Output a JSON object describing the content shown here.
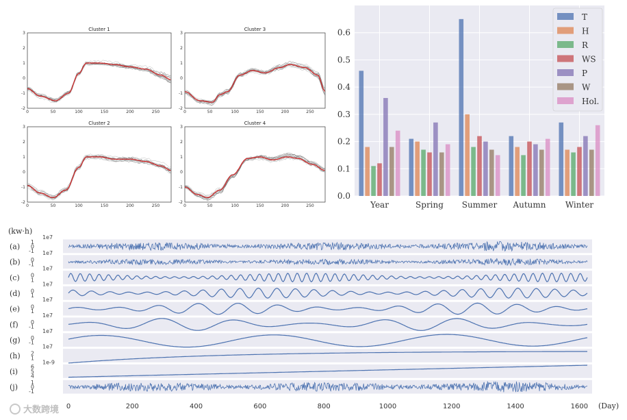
{
  "chart_data": [
    {
      "type": "line",
      "panel": "clusters",
      "xlim": [
        0,
        280
      ],
      "ylim": [
        -2,
        3
      ],
      "xticks": [
        0,
        50,
        100,
        150,
        200,
        250
      ],
      "yticks": [
        -2,
        -1,
        0,
        1,
        2,
        3
      ],
      "charts": [
        {
          "title": "Cluster 1",
          "mean": [
            [
              0,
              -0.7
            ],
            [
              25,
              -1.2
            ],
            [
              55,
              -1.5
            ],
            [
              80,
              -1.0
            ],
            [
              100,
              0.3
            ],
            [
              115,
              1.0
            ],
            [
              140,
              1.0
            ],
            [
              170,
              0.9
            ],
            [
              200,
              0.75
            ],
            [
              230,
              0.6
            ],
            [
              260,
              0.2
            ],
            [
              280,
              -0.1
            ]
          ]
        },
        {
          "title": "Cluster 3",
          "mean": [
            [
              0,
              -0.9
            ],
            [
              30,
              -1.5
            ],
            [
              55,
              -1.6
            ],
            [
              70,
              -1.1
            ],
            [
              85,
              -0.9
            ],
            [
              110,
              0.2
            ],
            [
              135,
              0.5
            ],
            [
              160,
              0.35
            ],
            [
              190,
              0.7
            ],
            [
              210,
              0.9
            ],
            [
              240,
              0.7
            ],
            [
              265,
              0.2
            ],
            [
              280,
              -0.9
            ]
          ]
        },
        {
          "title": "Cluster 2",
          "mean": [
            [
              0,
              -0.9
            ],
            [
              25,
              -1.4
            ],
            [
              50,
              -1.7
            ],
            [
              75,
              -1.2
            ],
            [
              100,
              0.3
            ],
            [
              115,
              1.0
            ],
            [
              140,
              1.0
            ],
            [
              170,
              0.85
            ],
            [
              200,
              0.85
            ],
            [
              230,
              0.7
            ],
            [
              260,
              0.4
            ],
            [
              280,
              0.1
            ]
          ]
        },
        {
          "title": "Cluster 4",
          "mean": [
            [
              0,
              -1.0
            ],
            [
              25,
              -1.5
            ],
            [
              45,
              -1.7
            ],
            [
              70,
              -1.2
            ],
            [
              95,
              -0.2
            ],
            [
              125,
              0.9
            ],
            [
              150,
              1.0
            ],
            [
              175,
              0.8
            ],
            [
              205,
              1.0
            ],
            [
              225,
              0.9
            ],
            [
              255,
              0.5
            ],
            [
              280,
              0.1
            ]
          ]
        }
      ]
    },
    {
      "type": "bar",
      "categories": [
        "Year",
        "Spring",
        "Summer",
        "Autumn",
        "Winter"
      ],
      "ylim": [
        0,
        0.7
      ],
      "yticks": [
        "0.0",
        "0.1",
        "0.2",
        "0.3",
        "0.4",
        "0.5",
        "0.6"
      ],
      "series": [
        {
          "name": "T",
          "color": "#4c72b0",
          "values": [
            0.46,
            0.21,
            0.65,
            0.22,
            0.27
          ]
        },
        {
          "name": "H",
          "color": "#dd8452",
          "values": [
            0.18,
            0.2,
            0.3,
            0.18,
            0.17
          ]
        },
        {
          "name": "R",
          "color": "#55a868",
          "values": [
            0.11,
            0.17,
            0.18,
            0.15,
            0.16
          ]
        },
        {
          "name": "WS",
          "color": "#c44e52",
          "values": [
            0.12,
            0.16,
            0.22,
            0.2,
            0.18
          ]
        },
        {
          "name": "P",
          "color": "#8172b3",
          "values": [
            0.36,
            0.27,
            0.2,
            0.19,
            0.22
          ]
        },
        {
          "name": "W",
          "color": "#937860",
          "values": [
            0.18,
            0.16,
            0.17,
            0.17,
            0.17
          ]
        },
        {
          "name": "Hol.",
          "color": "#da8bc3",
          "values": [
            0.24,
            0.19,
            0.15,
            0.21,
            0.26
          ]
        }
      ]
    },
    {
      "type": "line",
      "panel": "decomposition",
      "y_unit": "(kw·h)",
      "xlabel": "(Day)",
      "xlim": [
        0,
        1625
      ],
      "xticks": [
        "200",
        "400",
        "600",
        "800",
        "1000",
        "1200",
        "1400",
        "1600"
      ],
      "first_tick_partial": "0",
      "rows": [
        {
          "label": "(a)",
          "scale": "1e7",
          "ticks": [
            "1",
            "0",
            "-1"
          ],
          "kind": "noise",
          "amp": 0.35,
          "freq": 0
        },
        {
          "label": "(b)",
          "scale": "1e7",
          "ticks": [
            "0",
            "-1"
          ],
          "kind": "noise",
          "amp": 0.25,
          "freq": 0
        },
        {
          "label": "(c)",
          "scale": "1e7",
          "ticks": [
            "0",
            "1"
          ],
          "kind": "osc",
          "amp": 0.35,
          "freq": 55
        },
        {
          "label": "(d)",
          "scale": "1e7",
          "ticks": [
            "0",
            "1"
          ],
          "kind": "osc",
          "amp": 0.4,
          "freq": 28
        },
        {
          "label": "(e)",
          "scale": "1e7",
          "ticks": [
            "0",
            "1"
          ],
          "kind": "osc",
          "amp": 0.45,
          "freq": 13
        },
        {
          "label": "(f)",
          "scale": "1e7",
          "ticks": [
            "0",
            "-1"
          ],
          "kind": "osc",
          "amp": 0.5,
          "freq": 7
        },
        {
          "label": "(g)",
          "scale": "1e7",
          "ticks": [
            "0",
            "-1"
          ],
          "kind": "slow",
          "amp": 0.6,
          "freq": 3
        },
        {
          "label": "(h)",
          "scale": "1e7",
          "ticks": [
            "2",
            "1"
          ],
          "kind": "rise",
          "amp": 0.6,
          "freq": 0
        },
        {
          "label": "(i)",
          "scale": "1e-9",
          "ticks": [
            "6",
            "5",
            "4"
          ],
          "kind": "linear",
          "amp": 0.6,
          "freq": 0
        },
        {
          "label": "(j)",
          "scale": "",
          "ticks": [
            "1",
            "0",
            "-1"
          ],
          "kind": "noise",
          "amp": 0.4,
          "freq": 0
        }
      ]
    }
  ],
  "watermark": "大数跨境"
}
